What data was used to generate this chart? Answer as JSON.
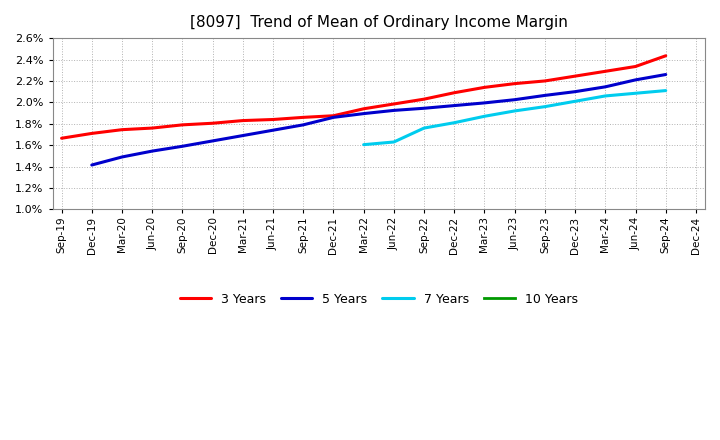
{
  "title": "[8097]  Trend of Mean of Ordinary Income Margin",
  "title_fontsize": 11,
  "background_color": "#ffffff",
  "plot_background_color": "#ffffff",
  "grid_color": "#aaaaaa",
  "ylim": [
    0.01,
    0.026
  ],
  "yticks": [
    0.01,
    0.012,
    0.014,
    0.016,
    0.018,
    0.02,
    0.022,
    0.024,
    0.026
  ],
  "series": {
    "3 Years": {
      "color": "#ff0000",
      "x_indices": [
        0,
        1,
        2,
        3,
        4,
        5,
        6,
        7,
        8,
        9,
        10,
        11,
        12,
        13,
        14,
        15,
        16,
        17,
        18,
        19,
        20
      ],
      "values": [
        0.01665,
        0.0171,
        0.01745,
        0.0176,
        0.0179,
        0.01805,
        0.0183,
        0.0184,
        0.0186,
        0.01875,
        0.0194,
        0.01985,
        0.0203,
        0.0209,
        0.0214,
        0.02175,
        0.022,
        0.02245,
        0.0229,
        0.02335,
        0.02435
      ]
    },
    "5 Years": {
      "color": "#0000cc",
      "x_indices": [
        1,
        2,
        3,
        4,
        5,
        6,
        7,
        8,
        9,
        10,
        11,
        12,
        13,
        14,
        15,
        16,
        17,
        18,
        19,
        20
      ],
      "values": [
        0.01415,
        0.0149,
        0.01545,
        0.0159,
        0.0164,
        0.0169,
        0.0174,
        0.0179,
        0.0186,
        0.01895,
        0.01925,
        0.01945,
        0.0197,
        0.01995,
        0.02025,
        0.02065,
        0.021,
        0.02145,
        0.0221,
        0.0226
      ]
    },
    "7 Years": {
      "color": "#00ccee",
      "x_indices": [
        10,
        11,
        12,
        13,
        14,
        15,
        16,
        17,
        18,
        19,
        20
      ],
      "values": [
        0.01605,
        0.0163,
        0.0176,
        0.0181,
        0.0187,
        0.0192,
        0.0196,
        0.0201,
        0.0206,
        0.02085,
        0.0211
      ]
    },
    "10 Years": {
      "color": "#009900",
      "x_indices": [],
      "values": []
    }
  },
  "legend_order": [
    "3 Years",
    "5 Years",
    "7 Years",
    "10 Years"
  ],
  "xtick_labels": [
    "Sep-19",
    "Dec-19",
    "Mar-20",
    "Jun-20",
    "Sep-20",
    "Dec-20",
    "Mar-21",
    "Jun-21",
    "Sep-21",
    "Dec-21",
    "Mar-22",
    "Jun-22",
    "Sep-22",
    "Dec-22",
    "Mar-23",
    "Jun-23",
    "Sep-23",
    "Dec-23",
    "Mar-24",
    "Jun-24",
    "Sep-24",
    "Dec-24"
  ]
}
